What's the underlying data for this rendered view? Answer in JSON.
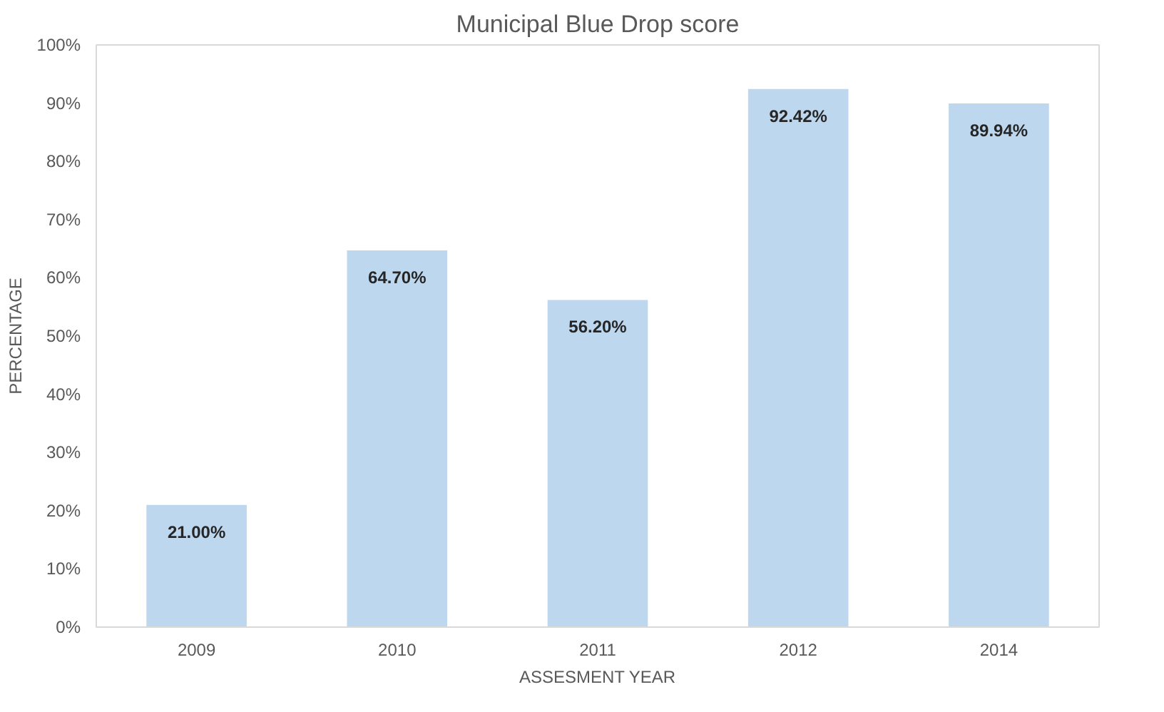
{
  "chart_data": {
    "type": "bar",
    "title": "Municipal Blue Drop score",
    "xlabel": "ASSESMENT YEAR",
    "ylabel": "PERCENTAGE",
    "categories": [
      "2009",
      "2010",
      "2011",
      "2012",
      "2014"
    ],
    "values": [
      21.0,
      64.7,
      56.2,
      92.42,
      89.94
    ],
    "value_labels": [
      "21.00%",
      "64.70%",
      "56.20%",
      "92.42%",
      "89.94%"
    ],
    "color": "#bdd7ee",
    "ylim": [
      0,
      100
    ],
    "yticks": [
      {
        "value": 0,
        "label": "0%"
      },
      {
        "value": 10,
        "label": "10%"
      },
      {
        "value": 20,
        "label": "20%"
      },
      {
        "value": 30,
        "label": "30%"
      },
      {
        "value": 40,
        "label": "40%"
      },
      {
        "value": 50,
        "label": "50%"
      },
      {
        "value": 60,
        "label": "60%"
      },
      {
        "value": 70,
        "label": "70%"
      },
      {
        "value": 80,
        "label": "80%"
      },
      {
        "value": 90,
        "label": "90%"
      },
      {
        "value": 100,
        "label": "100%"
      }
    ],
    "grid": false
  }
}
